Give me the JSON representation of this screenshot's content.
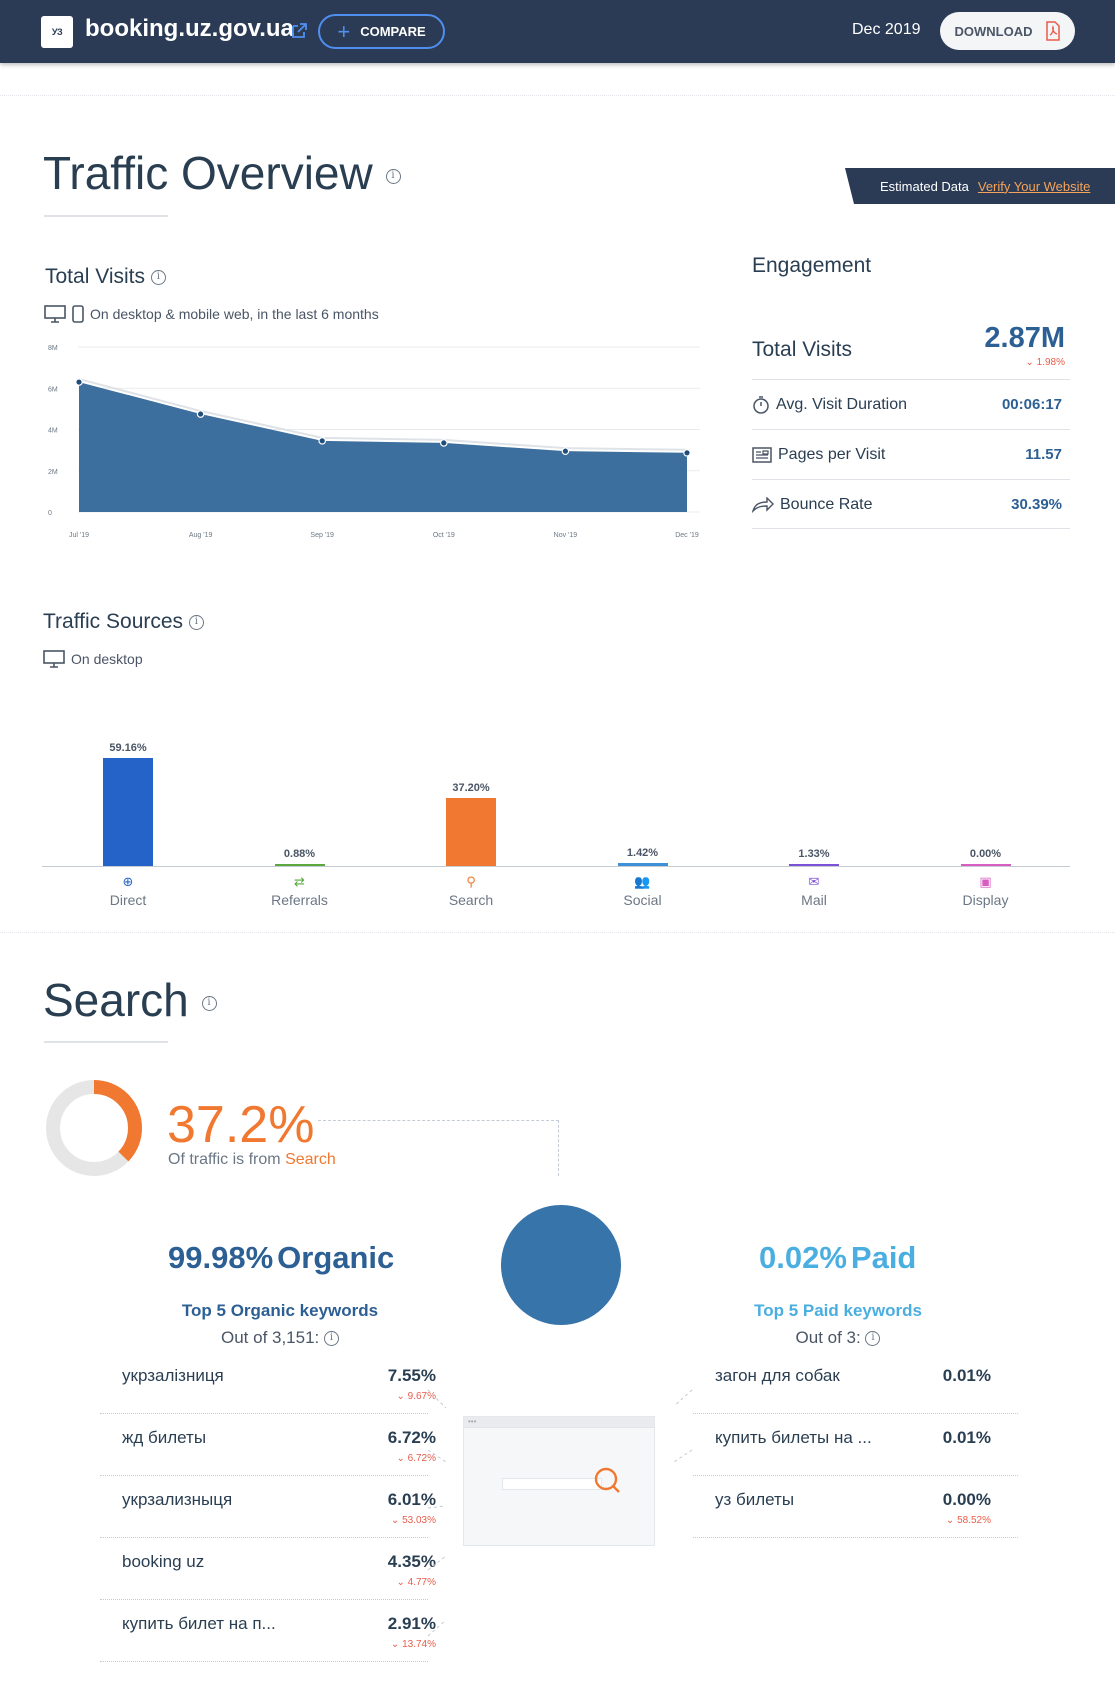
{
  "header": {
    "logo_text": "УЗ",
    "site": "booking.uz.gov.ua",
    "compare_label": "COMPARE",
    "date": "Dec 2019",
    "download_label": "DOWNLOAD"
  },
  "overview": {
    "title": "Traffic Overview",
    "estimated_label": "Estimated Data",
    "verify_label": "Verify Your Website"
  },
  "total_visits": {
    "title": "Total Visits",
    "caption": "On desktop & mobile web, in the last 6 months"
  },
  "chart_data": {
    "type": "area",
    "x": [
      "Jul '19",
      "Aug '19",
      "Sep '19",
      "Oct '19",
      "Nov '19",
      "Dec '19"
    ],
    "values": [
      6.3,
      4.75,
      3.45,
      3.35,
      2.95,
      2.87
    ],
    "y_ticks": [
      "0",
      "2M",
      "4M",
      "6M",
      "8M"
    ],
    "ylim": [
      0,
      8
    ],
    "grid": true,
    "colors": {
      "fill": "#3d6f9e",
      "line": "#1f4e7a"
    }
  },
  "engagement": {
    "title": "Engagement",
    "visits_label": "Total Visits",
    "visits_value": "2.87M",
    "visits_change": "1.98%",
    "rows": [
      {
        "icon": "stopwatch-icon",
        "label": "Avg. Visit Duration",
        "value": "00:06:17"
      },
      {
        "icon": "pages-icon",
        "label": "Pages per Visit",
        "value": "11.57"
      },
      {
        "icon": "bounce-icon",
        "label": "Bounce Rate",
        "value": "30.39%"
      }
    ]
  },
  "traffic_sources": {
    "title": "Traffic Sources",
    "caption": "On desktop",
    "items": [
      {
        "name": "Direct",
        "pct_label": "59.16%",
        "value": 59.16,
        "color": "#2563c8",
        "icon": "direct-icon"
      },
      {
        "name": "Referrals",
        "pct_label": "0.88%",
        "value": 0.88,
        "color": "#5ba83f",
        "icon": "referrals-icon"
      },
      {
        "name": "Search",
        "pct_label": "37.20%",
        "value": 37.2,
        "color": "#f07830",
        "icon": "search-icon"
      },
      {
        "name": "Social",
        "pct_label": "1.42%",
        "value": 1.42,
        "color": "#3d8fd8",
        "icon": "social-icon"
      },
      {
        "name": "Mail",
        "pct_label": "1.33%",
        "value": 1.33,
        "color": "#7b52d6",
        "icon": "mail-icon"
      },
      {
        "name": "Display",
        "pct_label": "0.00%",
        "value": 0,
        "color": "#d65ec0",
        "icon": "display-icon"
      }
    ]
  },
  "search": {
    "title": "Search",
    "pct": "37.2%",
    "pct_value": 37.2,
    "sub_prefix": "Of traffic is from",
    "sub_highlight": "Search",
    "organic": {
      "pct": "99.98%",
      "label": "Organic",
      "kw_title": "Top 5 Organic keywords",
      "out_of": "Out of 3,151:",
      "keywords": [
        {
          "kw": "укрзалізниця",
          "share": "7.55%",
          "change": "9.67%"
        },
        {
          "kw": "жд билеты",
          "share": "6.72%",
          "change": "6.72%"
        },
        {
          "kw": "укрзализныця",
          "share": "6.01%",
          "change": "53.03%"
        },
        {
          "kw": "booking uz",
          "share": "4.35%",
          "change": "4.77%"
        },
        {
          "kw": "купить билет на п...",
          "share": "2.91%",
          "change": "13.74%"
        }
      ]
    },
    "paid": {
      "pct": "0.02%",
      "label": "Paid",
      "kw_title": "Top 5 Paid keywords",
      "out_of": "Out of 3:",
      "keywords": [
        {
          "kw": "загон для собак",
          "share": "0.01%",
          "change": ""
        },
        {
          "kw": "купить билеты на ...",
          "share": "0.01%",
          "change": ""
        },
        {
          "kw": "уз билеты",
          "share": "0.00%",
          "change": "58.52%"
        }
      ]
    },
    "colors": {
      "organic": "#2c5f94",
      "paid": "#4aaee0",
      "accent": "#f07830"
    }
  }
}
